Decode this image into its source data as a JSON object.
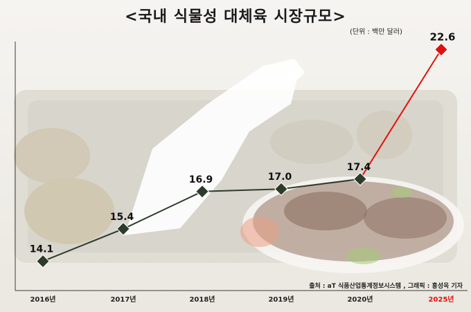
{
  "header": {
    "title": "<국내 식물성 대체육 시장규모>",
    "unit": "(단위 : 백만 달러)"
  },
  "footer": {
    "source": "출처 : aT 식품산업통계정보시스템 , 그래픽 : 홍성욱 기자"
  },
  "colors": {
    "line": "#2d3b2a",
    "forecast": "#e01010",
    "axis": "#3a3a3a"
  },
  "chart_data": {
    "type": "line",
    "title": "<국내 식물성 대체육 시장규모>",
    "unit": "(단위 : 백만 달러)",
    "categories": [
      "2016년",
      "2017년",
      "2018년",
      "2019년",
      "2020년",
      "2025년"
    ],
    "values": [
      14.1,
      15.4,
      16.9,
      17.0,
      17.4,
      22.6
    ],
    "value_labels": [
      "14.1",
      "15.4",
      "16.9",
      "17.0",
      "17.4",
      "22.6"
    ],
    "forecast_index": 5,
    "ylim": [
      13.2,
      23.2
    ],
    "grid": false,
    "legend": "none"
  }
}
